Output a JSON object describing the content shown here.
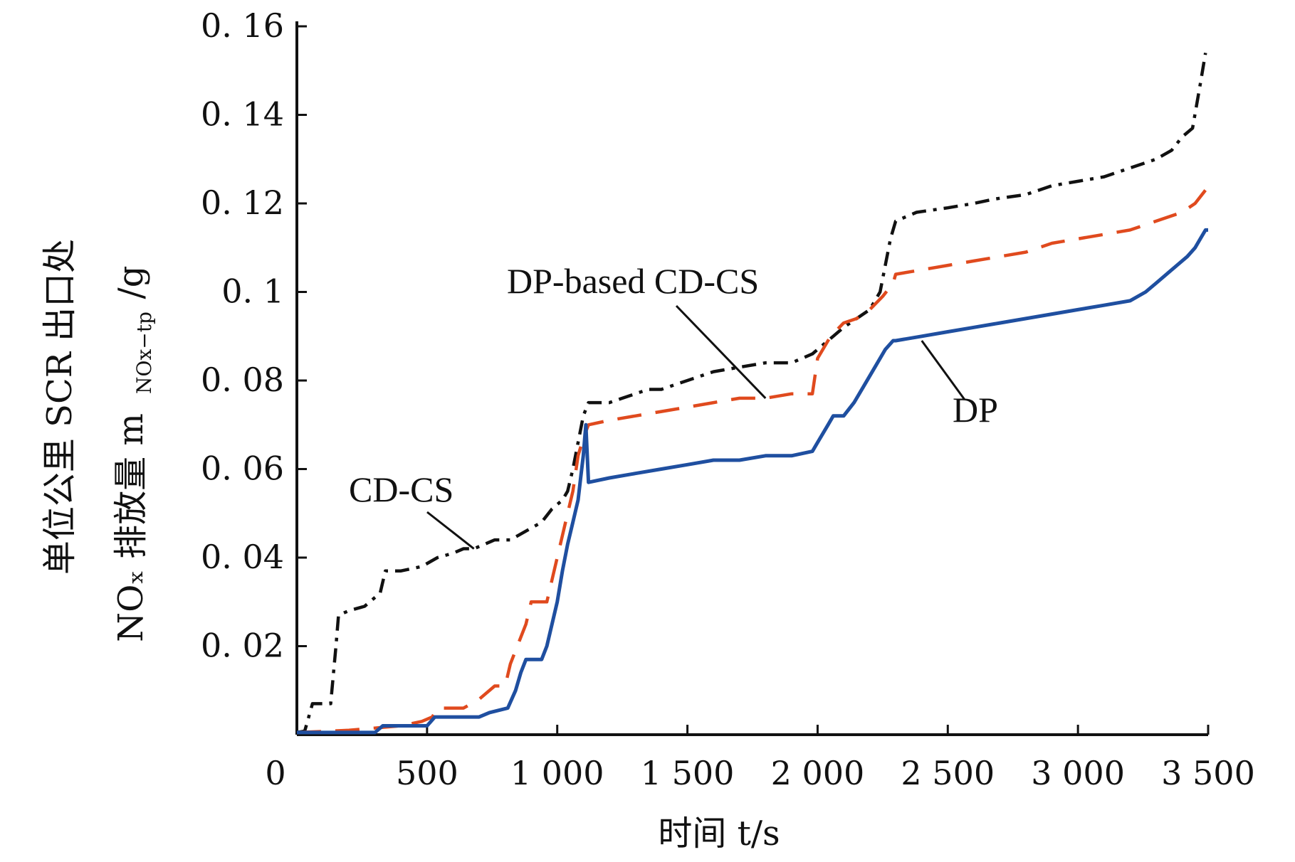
{
  "chart_data": {
    "type": "line",
    "xlabel": "时间 t/s",
    "ylabel_line1": "单位公里 SCR 出口处",
    "ylabel_line2": "NOₓ 排放量 m",
    "ylabel_sub": "NOx−tp",
    "ylabel_unit": "/g",
    "xlim": [
      0,
      3500
    ],
    "ylim": [
      0,
      0.16
    ],
    "x_ticks": [
      0,
      500,
      1000,
      1500,
      2000,
      2500,
      3000,
      3500
    ],
    "x_tick_labels": [
      "0",
      "500",
      "1 000",
      "1 500",
      "2 000",
      "2 500",
      "3 000",
      "3 500"
    ],
    "y_ticks": [
      0.02,
      0.04,
      0.06,
      0.08,
      0.1,
      0.12,
      0.14,
      0.16
    ],
    "y_tick_labels": [
      "0. 02",
      "0. 04",
      "0. 06",
      "0. 08",
      "0. 1",
      "0. 12",
      "0. 14",
      "0. 16"
    ],
    "grid": false,
    "legend": "none (inline annotations)",
    "series": [
      {
        "name": "CD-CS",
        "color": "#111111",
        "dash": "dashdot",
        "x": [
          0,
          30,
          60,
          130,
          150,
          160,
          200,
          260,
          320,
          340,
          400,
          480,
          540,
          600,
          640,
          680,
          720,
          760,
          820,
          880,
          940,
          980,
          1020,
          1040,
          1060,
          1080,
          1100,
          1120,
          1200,
          1300,
          1350,
          1400,
          1450,
          1500,
          1550,
          1600,
          1700,
          1800,
          1900,
          1980,
          2020,
          2060,
          2100,
          2150,
          2200,
          2240,
          2260,
          2280,
          2300,
          2380,
          2500,
          2600,
          2680,
          2800,
          2900,
          3000,
          3100,
          3200,
          3300,
          3360,
          3400,
          3440,
          3470,
          3490
        ],
        "y": [
          0.0005,
          0.0008,
          0.007,
          0.007,
          0.02,
          0.027,
          0.028,
          0.029,
          0.032,
          0.037,
          0.037,
          0.038,
          0.04,
          0.041,
          0.042,
          0.042,
          0.043,
          0.044,
          0.044,
          0.046,
          0.048,
          0.051,
          0.053,
          0.055,
          0.06,
          0.066,
          0.072,
          0.075,
          0.075,
          0.077,
          0.078,
          0.078,
          0.079,
          0.08,
          0.081,
          0.082,
          0.083,
          0.084,
          0.084,
          0.086,
          0.088,
          0.09,
          0.092,
          0.094,
          0.096,
          0.1,
          0.106,
          0.112,
          0.116,
          0.118,
          0.119,
          0.12,
          0.121,
          0.122,
          0.124,
          0.125,
          0.126,
          0.128,
          0.13,
          0.132,
          0.135,
          0.137,
          0.147,
          0.154
        ]
      },
      {
        "name": "DP-based CD-CS",
        "color": "#e04a1e",
        "dash": "dashed",
        "x": [
          0,
          200,
          400,
          480,
          520,
          540,
          640,
          700,
          760,
          800,
          820,
          880,
          900,
          960,
          980,
          1000,
          1020,
          1040,
          1060,
          1080,
          1100,
          1120,
          1200,
          1300,
          1400,
          1500,
          1600,
          1700,
          1800,
          1900,
          1960,
          1980,
          2000,
          2050,
          2100,
          2150,
          2200,
          2250,
          2290,
          2300,
          2400,
          2500,
          2600,
          2700,
          2800,
          2900,
          3000,
          3100,
          3200,
          3300,
          3400,
          3450,
          3490
        ],
        "y": [
          0.0005,
          0.001,
          0.002,
          0.003,
          0.004,
          0.006,
          0.006,
          0.008,
          0.011,
          0.011,
          0.016,
          0.025,
          0.03,
          0.03,
          0.035,
          0.04,
          0.045,
          0.05,
          0.055,
          0.063,
          0.067,
          0.07,
          0.071,
          0.072,
          0.073,
          0.074,
          0.075,
          0.076,
          0.076,
          0.077,
          0.077,
          0.077,
          0.085,
          0.09,
          0.093,
          0.094,
          0.096,
          0.099,
          0.102,
          0.104,
          0.105,
          0.106,
          0.107,
          0.108,
          0.109,
          0.111,
          0.112,
          0.113,
          0.114,
          0.116,
          0.118,
          0.12,
          0.123
        ]
      },
      {
        "name": "DP",
        "color": "#1f4fa0",
        "dash": "solid",
        "x": [
          0,
          300,
          330,
          500,
          530,
          700,
          740,
          810,
          840,
          860,
          880,
          940,
          960,
          980,
          1000,
          1020,
          1040,
          1060,
          1080,
          1090,
          1100,
          1110,
          1120,
          1200,
          1300,
          1400,
          1500,
          1600,
          1700,
          1800,
          1900,
          1980,
          2000,
          2040,
          2060,
          2100,
          2140,
          2180,
          2220,
          2260,
          2290,
          2300,
          2400,
          2500,
          2600,
          2700,
          2800,
          2900,
          3000,
          3100,
          3200,
          3260,
          3300,
          3340,
          3380,
          3420,
          3450,
          3470,
          3490,
          3500
        ],
        "y": [
          0.0005,
          0.0005,
          0.002,
          0.002,
          0.004,
          0.004,
          0.005,
          0.006,
          0.01,
          0.014,
          0.017,
          0.017,
          0.02,
          0.025,
          0.03,
          0.037,
          0.043,
          0.048,
          0.053,
          0.058,
          0.063,
          0.07,
          0.057,
          0.058,
          0.059,
          0.06,
          0.061,
          0.062,
          0.062,
          0.063,
          0.063,
          0.064,
          0.066,
          0.07,
          0.072,
          0.072,
          0.075,
          0.079,
          0.083,
          0.087,
          0.089,
          0.089,
          0.09,
          0.091,
          0.092,
          0.093,
          0.094,
          0.095,
          0.096,
          0.097,
          0.098,
          0.1,
          0.102,
          0.104,
          0.106,
          0.108,
          0.11,
          0.112,
          0.114,
          0.114
        ]
      }
    ],
    "annotations": [
      {
        "text": "CD-CS",
        "target_x": 680,
        "target_y": 0.042
      },
      {
        "text": "DP-based CD-CS",
        "target_x": 1800,
        "target_y": 0.076
      },
      {
        "text": "DP",
        "target_x": 2400,
        "target_y": 0.089
      }
    ]
  }
}
